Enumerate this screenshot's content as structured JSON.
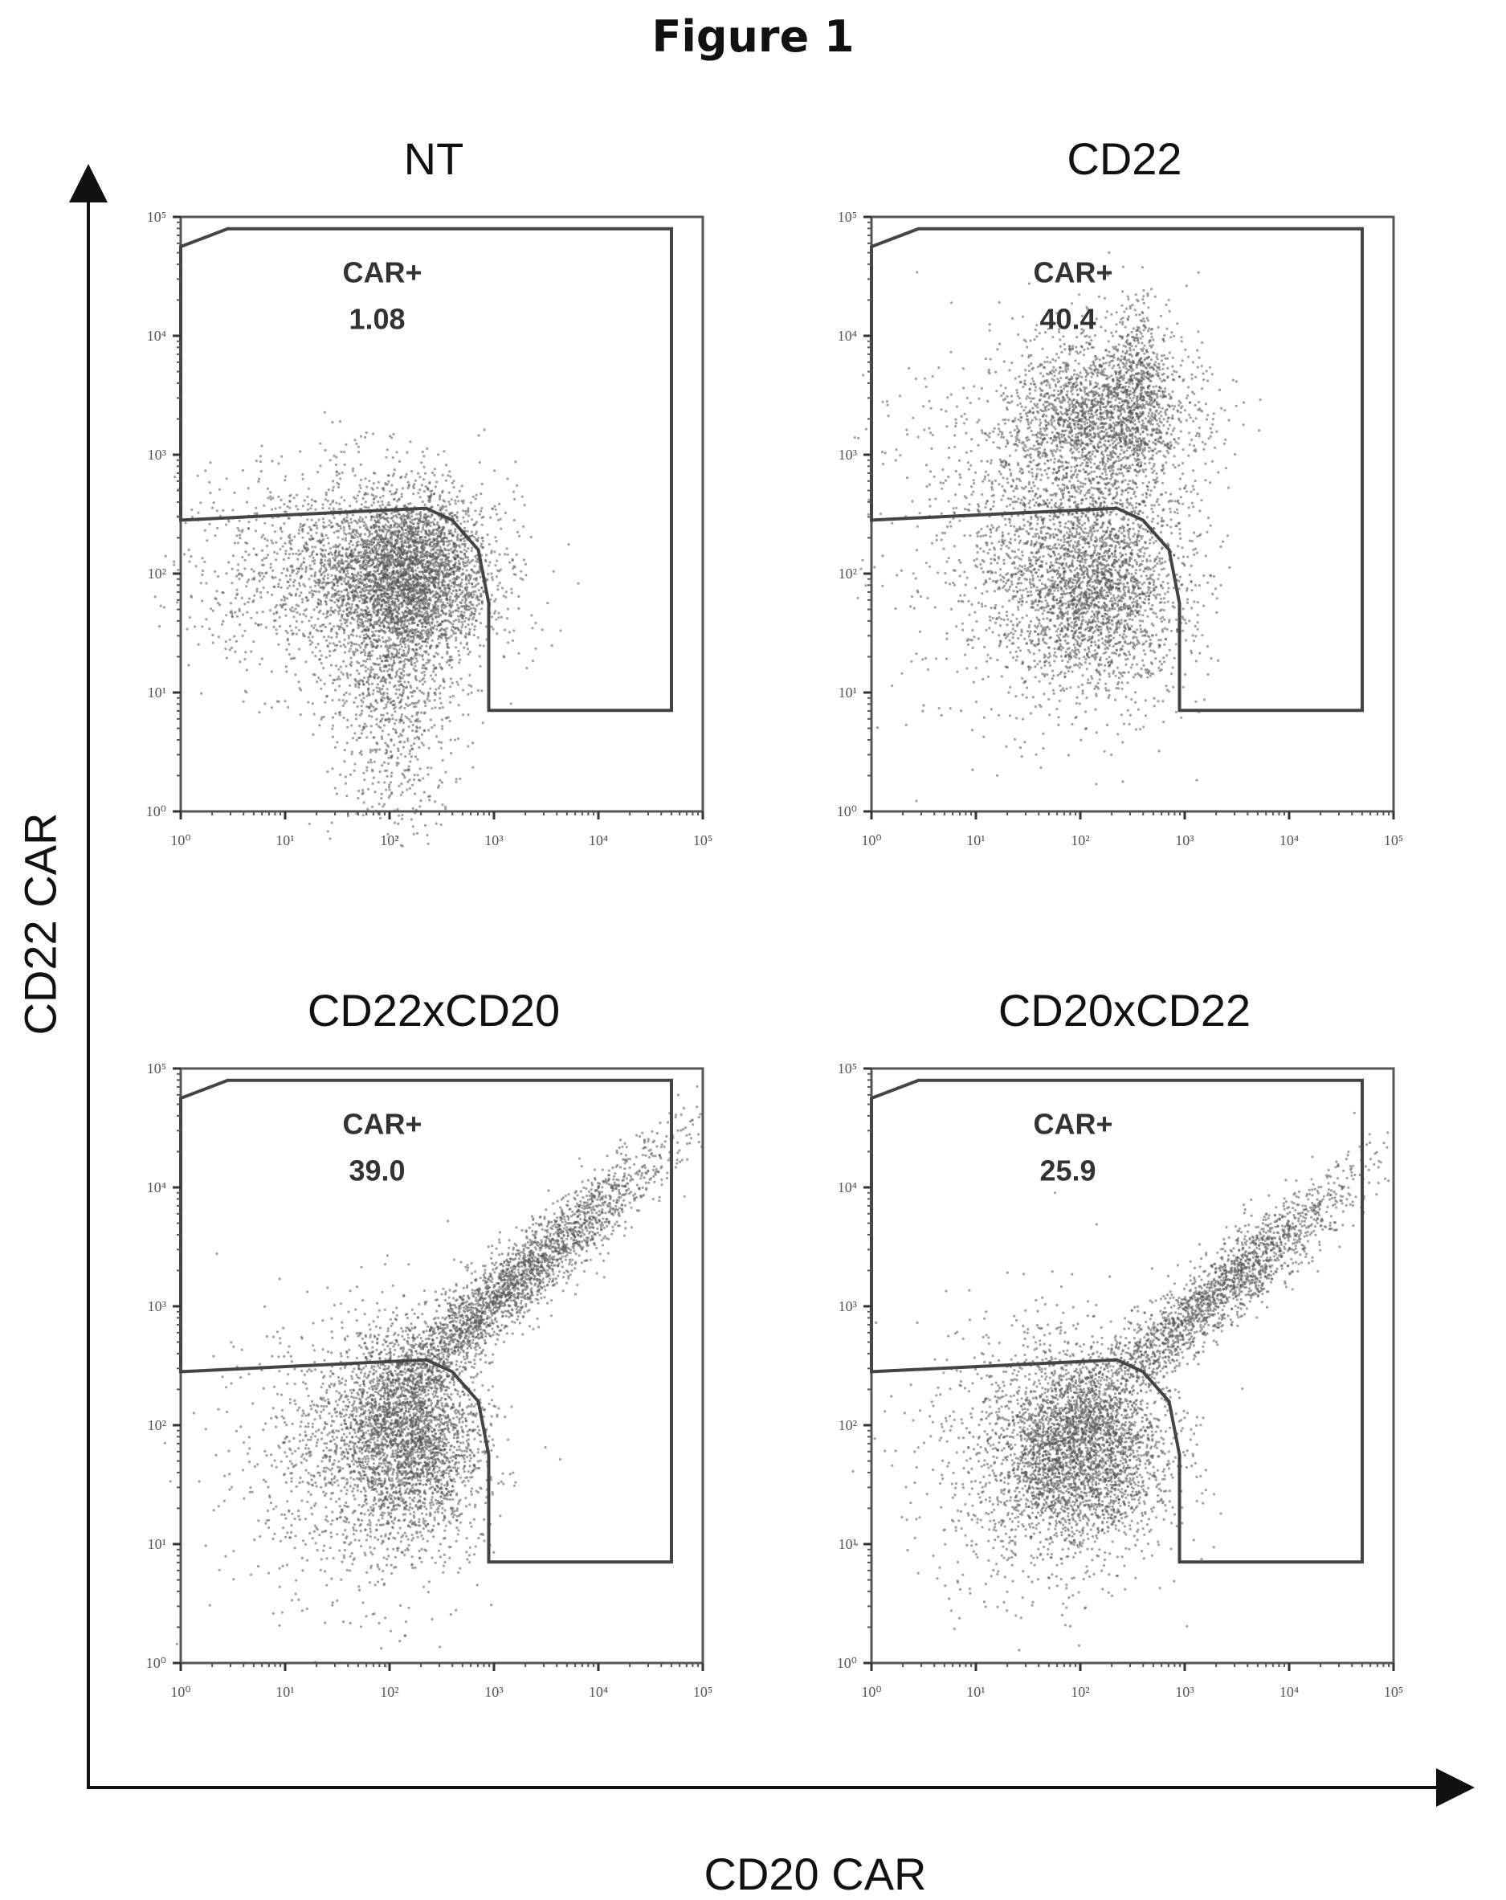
{
  "figure": {
    "title": "Figure 1",
    "ylabel": "CD22 CAR",
    "xlabel": "CD20 CAR"
  },
  "chart_data": [
    {
      "type": "scatter",
      "title": "NT",
      "gate_label": "CAR+",
      "gate_value": "1.08",
      "x_scale": "log",
      "y_scale": "log",
      "xlim": [
        1,
        100000
      ],
      "ylim": [
        1,
        100000
      ],
      "tick_labels": [
        "10⁰",
        "10¹",
        "10²",
        "10³",
        "10⁴",
        "10⁵"
      ],
      "populations": [
        {
          "center_log": [
            2.2,
            2.0
          ],
          "spread_log": [
            0.4,
            0.35
          ],
          "tilt": 0.0,
          "count": 3200
        },
        {
          "center_log": [
            1.5,
            2.0
          ],
          "spread_log": [
            0.7,
            0.45
          ],
          "tilt": 0.0,
          "count": 1400
        },
        {
          "center_log": [
            2.0,
            1.0
          ],
          "spread_log": [
            0.3,
            0.55
          ],
          "tilt": 0.0,
          "count": 900
        }
      ]
    },
    {
      "type": "scatter",
      "title": "CD22",
      "gate_label": "CAR+",
      "gate_value": "40.4",
      "x_scale": "log",
      "y_scale": "log",
      "xlim": [
        1,
        100000
      ],
      "ylim": [
        1,
        100000
      ],
      "tick_labels": [
        "10⁰",
        "10¹",
        "10²",
        "10³",
        "10⁴",
        "10⁵"
      ],
      "populations": [
        {
          "center_log": [
            2.1,
            1.9
          ],
          "spread_log": [
            0.45,
            0.45
          ],
          "tilt": 0.0,
          "count": 2600
        },
        {
          "center_log": [
            2.2,
            3.3
          ],
          "spread_log": [
            0.45,
            0.35
          ],
          "tilt": 0.0,
          "count": 2000
        },
        {
          "center_log": [
            2.55,
            3.6
          ],
          "spread_log": [
            0.12,
            0.35
          ],
          "tilt": 0.0,
          "count": 400
        },
        {
          "center_log": [
            1.5,
            2.4
          ],
          "spread_log": [
            0.7,
            0.8
          ],
          "tilt": 0.0,
          "count": 900
        }
      ]
    },
    {
      "type": "scatter",
      "title": "CD22xCD20",
      "gate_label": "CAR+",
      "gate_value": "39.0",
      "x_scale": "log",
      "y_scale": "log",
      "xlim": [
        1,
        100000
      ],
      "ylim": [
        1,
        100000
      ],
      "tick_labels": [
        "10⁰",
        "10¹",
        "10²",
        "10³",
        "10⁴",
        "10⁵"
      ],
      "populations": [
        {
          "center_log": [
            2.2,
            1.9
          ],
          "spread_log": [
            0.35,
            0.45
          ],
          "tilt": 0.0,
          "count": 2600
        },
        {
          "center_log": [
            3.2,
            3.2
          ],
          "spread_log": [
            0.75,
            0.18
          ],
          "tilt": 0.75,
          "count": 2600
        },
        {
          "center_log": [
            1.6,
            1.7
          ],
          "spread_log": [
            0.6,
            0.6
          ],
          "tilt": 0.0,
          "count": 900
        }
      ]
    },
    {
      "type": "scatter",
      "title": "CD20xCD22",
      "gate_label": "CAR+",
      "gate_value": "25.9",
      "x_scale": "log",
      "y_scale": "log",
      "xlim": [
        1,
        100000
      ],
      "ylim": [
        1,
        100000
      ],
      "tick_labels": [
        "10⁰",
        "10¹",
        "10²",
        "10³",
        "10⁴",
        "10⁵"
      ],
      "populations": [
        {
          "center_log": [
            2.0,
            1.8
          ],
          "spread_log": [
            0.4,
            0.4
          ],
          "tilt": 0.0,
          "count": 2800
        },
        {
          "center_log": [
            3.3,
            3.1
          ],
          "spread_log": [
            0.7,
            0.17
          ],
          "tilt": 0.72,
          "count": 2000
        },
        {
          "center_log": [
            1.6,
            1.7
          ],
          "spread_log": [
            0.6,
            0.6
          ],
          "tilt": 0.0,
          "count": 900
        }
      ]
    }
  ]
}
